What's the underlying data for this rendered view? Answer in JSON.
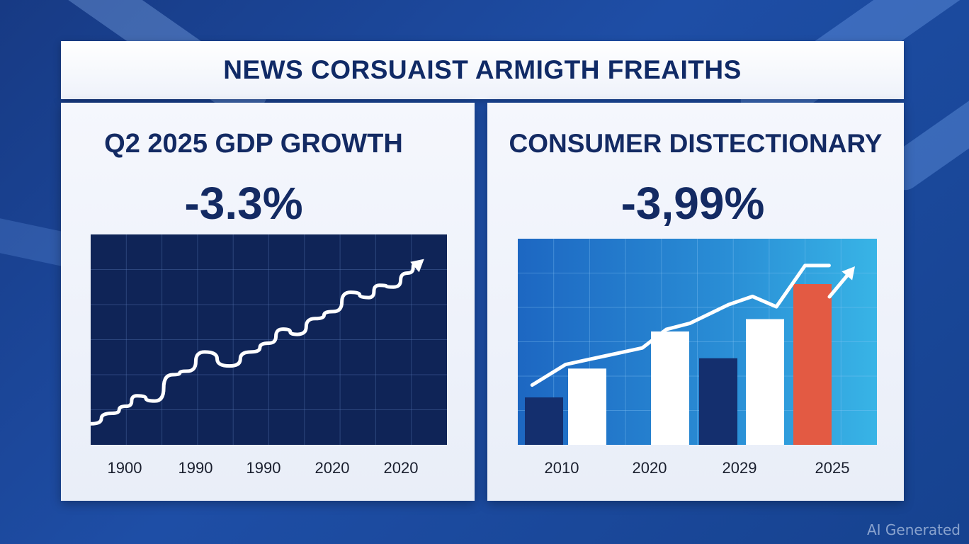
{
  "headline": "NEWS CORSUAIST ARMIGTH FREAITHS",
  "watermark": "AI Generated",
  "colors": {
    "background": "#1a459a",
    "panel": "#f2f5fc",
    "text": "#132a63",
    "left_chart_bg": "#0f2457",
    "line": "#ffffff",
    "bar_navy": "#142f6e",
    "bar_white": "#ffffff",
    "bar_red": "#e35a43"
  },
  "chart_data": [
    {
      "type": "line",
      "title": "Q2 2025 GDP GROWTH",
      "headline_value": "-3.3%",
      "xlabel": "",
      "ylabel": "",
      "grid": true,
      "tick_labels": [
        "1900",
        "1990",
        "1990",
        "2020",
        "2020"
      ],
      "xlim": [
        0,
        10
      ],
      "ylim": [
        0,
        12
      ],
      "series": [
        {
          "name": "growth",
          "x": [
            0,
            0.6,
            1,
            1.3,
            1.8,
            2.3,
            2.7,
            3.2,
            3.9,
            4.5,
            5,
            5.4,
            5.8,
            6.3,
            6.8,
            7.3,
            7.8,
            8.1,
            8.5,
            8.9,
            9.2
          ],
          "values": [
            1.2,
            1.8,
            2.2,
            2.8,
            2.5,
            4,
            4.2,
            5.3,
            4.5,
            5.3,
            5.8,
            6.6,
            6.3,
            7.2,
            7.6,
            8.7,
            8.4,
            9.1,
            9,
            9.8,
            10.4
          ]
        }
      ]
    },
    {
      "type": "bar",
      "title": "CONSUMER DISTECTIONARY",
      "headline_value": "-3,99%",
      "xlabel": "",
      "ylabel": "",
      "grid": true,
      "tick_labels": [
        "2010",
        "2020",
        "2029",
        "2025"
      ],
      "ylim": [
        0,
        10
      ],
      "bars": [
        {
          "label": "bar-1",
          "value": 2.3,
          "color": "#142f6e"
        },
        {
          "label": "bar-2",
          "value": 3.7,
          "color": "#ffffff"
        },
        {
          "label": "bar-3",
          "value": 5.5,
          "color": "#ffffff"
        },
        {
          "label": "bar-4",
          "value": 4.2,
          "color": "#142f6e"
        },
        {
          "label": "bar-5",
          "value": 6.1,
          "color": "#ffffff"
        },
        {
          "label": "bar-6",
          "value": 7.8,
          "color": "#e35a43"
        }
      ],
      "line": {
        "x": [
          0.3,
          1,
          1.8,
          2.6,
          3.1,
          3.6,
          4.4,
          4.9,
          5.4,
          6,
          6.5
        ],
        "values": [
          2.9,
          3.9,
          4.3,
          4.7,
          5.6,
          5.9,
          6.8,
          7.2,
          6.7,
          8.7,
          8.7
        ]
      },
      "xlim": [
        0,
        7.5
      ]
    }
  ]
}
